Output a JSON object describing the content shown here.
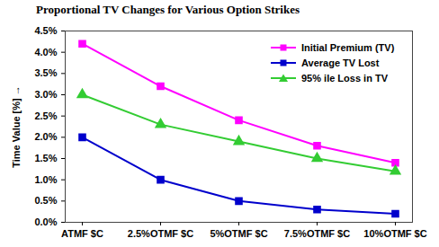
{
  "chart_data": {
    "type": "line",
    "title": "Proportional TV Changes for Various Option Strikes",
    "y_label": "Time Value [%]",
    "categories": [
      "ATMF $C",
      "2.5%OTMF $C",
      "5%OTMF $C",
      "7.5%OTMF $C",
      "10%OTMF $C"
    ],
    "series": [
      {
        "name": "Initial Premium (TV)",
        "color": "#ff00ff",
        "marker": "square",
        "values": [
          4.2,
          3.2,
          2.4,
          1.8,
          1.4
        ]
      },
      {
        "name": "Average TV Lost",
        "color": "#0000cc",
        "marker": "square",
        "values": [
          2.0,
          1.0,
          0.5,
          0.3,
          0.2
        ]
      },
      {
        "name": "95% ile Loss in TV",
        "color": "#33cc33",
        "marker": "triangle",
        "values": [
          3.0,
          2.3,
          1.9,
          1.5,
          1.2
        ]
      }
    ],
    "ylim": [
      0,
      4.5
    ],
    "yticks": [
      {
        "value": 0,
        "label": "0.0%"
      },
      {
        "value": 0.5,
        "label": "0.5%"
      },
      {
        "value": 1,
        "label": "1.0%"
      },
      {
        "value": 1.5,
        "label": "1.5%"
      },
      {
        "value": 2,
        "label": "2.0%"
      },
      {
        "value": 2.5,
        "label": "2.5%"
      },
      {
        "value": 3,
        "label": "3.0%"
      },
      {
        "value": 3.5,
        "label": "3.5%"
      },
      {
        "value": 4,
        "label": "4.0%"
      },
      {
        "value": 4.5,
        "label": "4.5%"
      }
    ],
    "grid": false,
    "legend": "top-right"
  }
}
